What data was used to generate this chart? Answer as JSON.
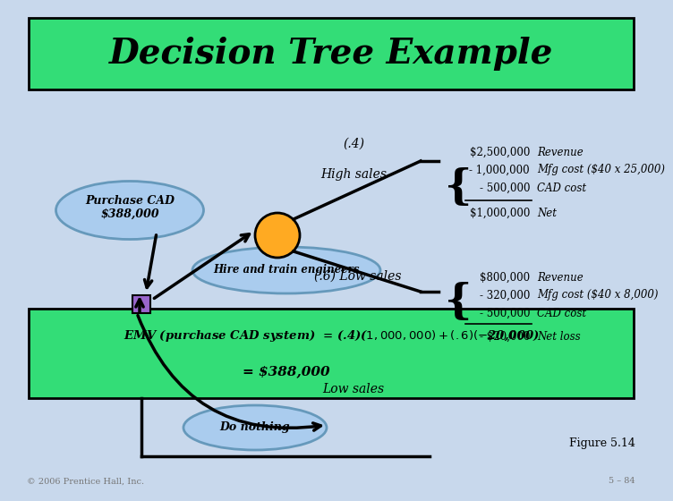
{
  "title": "Decision Tree Example",
  "title_fontsize": 28,
  "title_bg_color": "#33DD77",
  "bg_color": "#C8D8EC",
  "green_bg_color": "#33DD77",
  "purchase_cad_label": "Purchase CAD\n$388,000",
  "hire_label": "Hire and train engineers",
  "do_nothing_label": "Do nothing",
  "high_prob": "(.4)",
  "high_sales_label": "High sales",
  "low_prob": "(.6) Low sales",
  "low_sales_label": "Low sales",
  "emv_line1": "EMV (purchase CAD system)  = (.4)($1,000,000) + (.6)(- $20,000)",
  "emv_line2": "= $388,000",
  "figure_label": "Figure 5.14",
  "copyright_label": "© 2006 Prentice Hall, Inc.",
  "page_label": "5 – 84",
  "high_sales_values": [
    "$2,500,000",
    "- 1,000,000",
    "- 500,000",
    "$1,000,000"
  ],
  "high_sales_labels": [
    "Revenue",
    "Mfg cost ($40 x 25,000)",
    "CAD cost",
    "Net"
  ],
  "low_sales_values": [
    "$800,000",
    "- 320,000",
    "- 500,000",
    "- $20,000"
  ],
  "low_sales_labels": [
    "Revenue",
    "Mfg cost ($40 x 8,000)",
    "CAD cost",
    "Net loss"
  ],
  "node_color_square": "#9966CC",
  "node_color_circle": "#FFAA22",
  "ellipse_color": "#AACCEE",
  "ellipse_border": "#6699BB"
}
